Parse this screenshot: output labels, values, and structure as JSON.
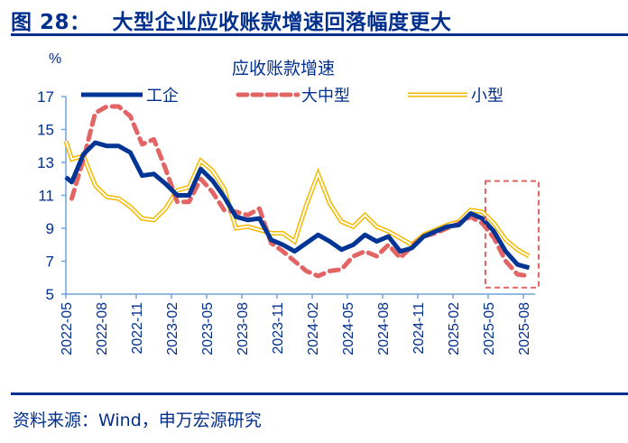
{
  "header": {
    "figure_number": "图 28：",
    "title": "大型企业应收账款增速回落幅度更大"
  },
  "footer": {
    "source": "资料来源：Wind，申万宏源研究"
  },
  "colors": {
    "brand": "#002f8e",
    "axis": "#6fa3d8",
    "industrial": "#003595",
    "large_medium": "#e36464",
    "small": "#f5b800",
    "highlight_box": "#e36464"
  },
  "chart_data": {
    "type": "line",
    "title": "应收账款增速",
    "ylabel": "%",
    "xlabel": "",
    "ylim": [
      5,
      17
    ],
    "yticks": [
      "5",
      "7",
      "9",
      "11",
      "13",
      "15",
      "17"
    ],
    "ytick_values": [
      5,
      7,
      9,
      11,
      13,
      15,
      17
    ],
    "grid": false,
    "legend_position": "top",
    "x_tick_labels": [
      "2022-05",
      "2022-08",
      "2022-11",
      "2023-02",
      "2023-05",
      "2023-08",
      "2023-11",
      "2024-02",
      "2024-05",
      "2024-08",
      "2024-11",
      "2025-02",
      "2025-05",
      "2025-08"
    ],
    "x": [
      "2022-05",
      "2022-06",
      "2022-07",
      "2022-08",
      "2022-09",
      "2022-10",
      "2022-11",
      "2022-12",
      "2023-01",
      "2023-02",
      "2023-03",
      "2023-04",
      "2023-05",
      "2023-06",
      "2023-07",
      "2023-08",
      "2023-09",
      "2023-10",
      "2023-11",
      "2023-12",
      "2024-01",
      "2024-02",
      "2024-03",
      "2024-04",
      "2024-05",
      "2024-06",
      "2024-07",
      "2024-08",
      "2024-09",
      "2024-10",
      "2024-11",
      "2024-12",
      "2025-01",
      "2025-02",
      "2025-03",
      "2025-04",
      "2025-05",
      "2025-06",
      "2025-07",
      "2025-08"
    ],
    "series": [
      {
        "name": "工企",
        "style": "solid-thick",
        "start_value": 12.1,
        "values": [
          11.8,
          13.5,
          14.2,
          14.0,
          14.0,
          13.6,
          12.2,
          12.3,
          11.7,
          11.0,
          11.0,
          12.6,
          11.9,
          10.9,
          9.7,
          9.5,
          9.6,
          8.3,
          8.0,
          7.6,
          8.1,
          8.6,
          8.2,
          7.7,
          8.0,
          8.6,
          8.2,
          8.5,
          7.6,
          7.8,
          8.5,
          8.8,
          9.1,
          9.2,
          9.9,
          9.6,
          8.8,
          7.6,
          6.8,
          6.6
        ]
      },
      {
        "name": "大中型",
        "style": "dashed",
        "values": [
          10.8,
          13.2,
          16.0,
          16.4,
          16.4,
          15.8,
          14.1,
          14.4,
          12.6,
          10.6,
          10.6,
          12.0,
          11.2,
          10.1,
          10.0,
          9.8,
          10.2,
          8.1,
          7.6,
          7.0,
          6.4,
          6.1,
          6.4,
          6.5,
          7.3,
          7.6,
          7.3,
          8.0,
          7.2,
          7.9,
          8.5,
          8.7,
          9.0,
          9.3,
          9.7,
          9.3,
          8.4,
          7.0,
          6.2,
          6.1
        ]
      },
      {
        "name": "小型",
        "style": "double-line",
        "start_value": 14.3,
        "values": [
          13.2,
          13.4,
          11.6,
          10.9,
          10.8,
          10.3,
          9.6,
          9.5,
          10.2,
          11.3,
          11.5,
          13.1,
          12.5,
          11.4,
          9.0,
          9.1,
          8.9,
          8.7,
          8.7,
          8.2,
          10.4,
          12.3,
          10.5,
          9.4,
          9.1,
          9.8,
          9.1,
          8.8,
          8.4,
          8.0,
          8.6,
          8.9,
          9.2,
          9.4,
          10.1,
          10.0,
          9.3,
          8.3,
          7.7,
          7.3
        ]
      }
    ],
    "annotation": {
      "type": "dashed-box",
      "from": "2025-05",
      "to": "2025-08"
    }
  }
}
